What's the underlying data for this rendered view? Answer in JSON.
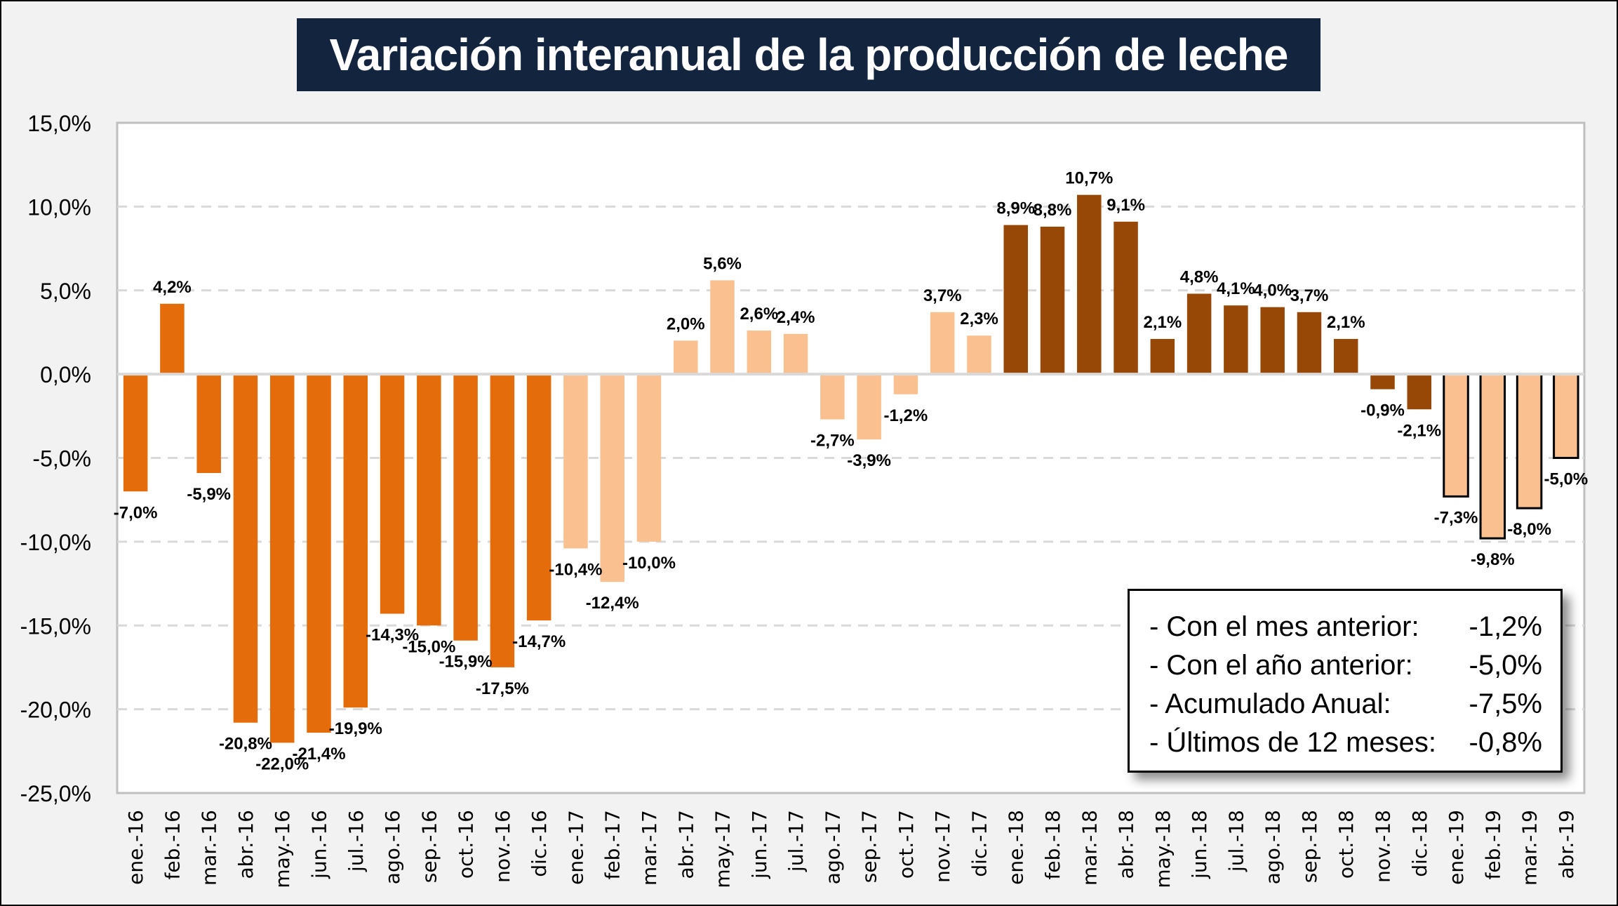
{
  "title": "Variación interanual de la producción de leche",
  "colors": {
    "y2016": "#e46c0a",
    "y2017": "#fac090",
    "y2018": "#974706",
    "y2019": "#fac090",
    "grid": "#d9d9d9",
    "axis": "#bfbfbf",
    "title_bg": "#13243f"
  },
  "summary": [
    {
      "label": "- Con el mes anterior:",
      "value": "-1,2%"
    },
    {
      "label": "- Con el año anterior:",
      "value": "-5,0%"
    },
    {
      "label": "- Acumulado Anual:",
      "value": "-7,5%"
    },
    {
      "label": "- Últimos de 12 meses:",
      "value": "-0,8%"
    }
  ],
  "chart_data": {
    "type": "bar",
    "title": "Variación interanual de la producción de leche",
    "xlabel": "",
    "ylabel": "",
    "ylim": [
      -25,
      15
    ],
    "yticks": [
      15,
      10,
      5,
      0,
      -5,
      -10,
      -15,
      -20,
      -25
    ],
    "ytick_labels": [
      "15,0%",
      "10,0%",
      "5,0%",
      "0,0%",
      "-5,0%",
      "-10,0%",
      "-15,0%",
      "-20,0%",
      "-25,0%"
    ],
    "grid": true,
    "categories": [
      "ene.-16",
      "feb.-16",
      "mar.-16",
      "abr.-16",
      "may.-16",
      "jun.-16",
      "jul.-16",
      "ago.-16",
      "sep.-16",
      "oct.-16",
      "nov.-16",
      "dic.-16",
      "ene.-17",
      "feb.-17",
      "mar.-17",
      "abr.-17",
      "may.-17",
      "jun.-17",
      "jul.-17",
      "ago.-17",
      "sep.-17",
      "oct.-17",
      "nov.-17",
      "dic.-17",
      "ene.-18",
      "feb.-18",
      "mar.-18",
      "abr.-18",
      "may.-18",
      "jun.-18",
      "jul.-18",
      "ago.-18",
      "sep.-18",
      "oct.-18",
      "nov.-18",
      "dic.-18",
      "ene.-19",
      "feb.-19",
      "mar.-19",
      "abr.-19"
    ],
    "values": [
      -7.0,
      4.2,
      -5.9,
      -20.8,
      -22.0,
      -21.4,
      -19.9,
      -14.3,
      -15.0,
      -15.9,
      -17.5,
      -14.7,
      -10.4,
      -12.4,
      -10.0,
      2.0,
      5.6,
      2.6,
      2.4,
      -2.7,
      -3.9,
      -1.2,
      3.7,
      2.3,
      8.9,
      8.8,
      10.7,
      9.1,
      2.1,
      4.8,
      4.1,
      4.0,
      3.7,
      2.1,
      -0.9,
      -2.1,
      -7.3,
      -9.8,
      -8.0,
      -5.0
    ],
    "data_labels": [
      "-7,0%",
      "4,2%",
      "-5,9%",
      "-20,8%",
      "-22,0%",
      "-21,4%",
      "-19,9%",
      "-14,3%",
      "-15,0%",
      "-15,9%",
      "-17,5%",
      "-14,7%",
      "-10,4%",
      "-12,4%",
      "-10,0%",
      "2,0%",
      "5,6%",
      "2,6%",
      "2,4%",
      "-2,7%",
      "-3,9%",
      "-1,2%",
      "3,7%",
      "2,3%",
      "8,9%",
      "8,8%",
      "10,7%",
      "9,1%",
      "2,1%",
      "4,8%",
      "4,1%",
      "4,0%",
      "3,7%",
      "2,1%",
      "-0,9%",
      "-2,1%",
      "-7,3%",
      "-9,8%",
      "-8,0%",
      "-5,0%"
    ],
    "year_groups": [
      "2016",
      "2016",
      "2016",
      "2016",
      "2016",
      "2016",
      "2016",
      "2016",
      "2016",
      "2016",
      "2016",
      "2016",
      "2017",
      "2017",
      "2017",
      "2017",
      "2017",
      "2017",
      "2017",
      "2017",
      "2017",
      "2017",
      "2017",
      "2017",
      "2018",
      "2018",
      "2018",
      "2018",
      "2018",
      "2018",
      "2018",
      "2018",
      "2018",
      "2018",
      "2018",
      "2018",
      "2019",
      "2019",
      "2019",
      "2019"
    ]
  }
}
